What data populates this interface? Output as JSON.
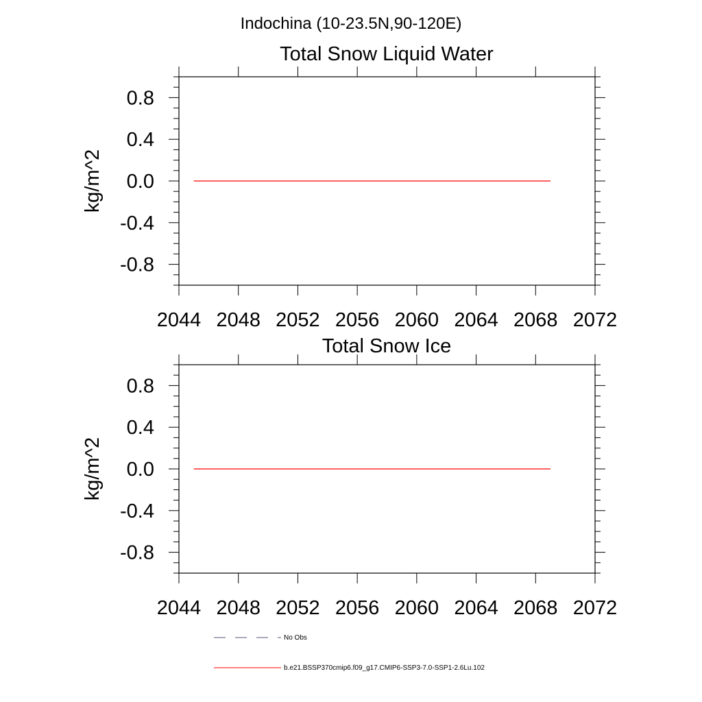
{
  "figure": {
    "title": "Indochina (10-23.5N,90-120E)"
  },
  "colors": {
    "model_line": "#ff0000",
    "obs_line": "#555577",
    "axis": "#000000"
  },
  "legend": {
    "placement": "bottom",
    "entries": [
      {
        "label": "No Obs",
        "style": "dashed"
      },
      {
        "label": "b.e21.BSSP370cmip6.f09_g17.CMIP6-SSP3-7.0-SSP1-2.6Lu.102",
        "style": "solid"
      }
    ]
  },
  "chart_data": [
    {
      "type": "line",
      "title": "Total Snow Liquid Water",
      "xlabel": "",
      "ylabel": "kg/m^2",
      "xlim": [
        2044,
        2072
      ],
      "ylim": [
        -1.0,
        1.0
      ],
      "xticks": [
        2044,
        2048,
        2052,
        2056,
        2060,
        2064,
        2068,
        2072
      ],
      "xtick_labels": [
        "2044",
        "2048",
        "2052",
        "2056",
        "2060",
        "2064",
        "2068",
        "2072"
      ],
      "yticks": [
        0.8,
        0.4,
        0.0,
        -0.4,
        -0.8
      ],
      "ytick_labels": [
        "0.8",
        "0.4",
        "0.0",
        "-0.4",
        "-0.8"
      ],
      "grid": false,
      "series": [
        {
          "x": [
            2045,
            2069
          ],
          "y": [
            0.0,
            0.0
          ]
        }
      ]
    },
    {
      "type": "line",
      "title": "Total Snow Ice",
      "xlabel": "",
      "ylabel": "kg/m^2",
      "xlim": [
        2044,
        2072
      ],
      "ylim": [
        -1.0,
        1.0
      ],
      "xticks": [
        2044,
        2048,
        2052,
        2056,
        2060,
        2064,
        2068,
        2072
      ],
      "xtick_labels": [
        "2044",
        "2048",
        "2052",
        "2056",
        "2060",
        "2064",
        "2068",
        "2072"
      ],
      "yticks": [
        0.8,
        0.4,
        0.0,
        -0.4,
        -0.8
      ],
      "ytick_labels": [
        "0.8",
        "0.4",
        "0.0",
        "-0.4",
        "-0.8"
      ],
      "grid": false,
      "series": [
        {
          "x": [
            2045,
            2069
          ],
          "y": [
            0.0,
            0.0
          ]
        }
      ]
    }
  ]
}
